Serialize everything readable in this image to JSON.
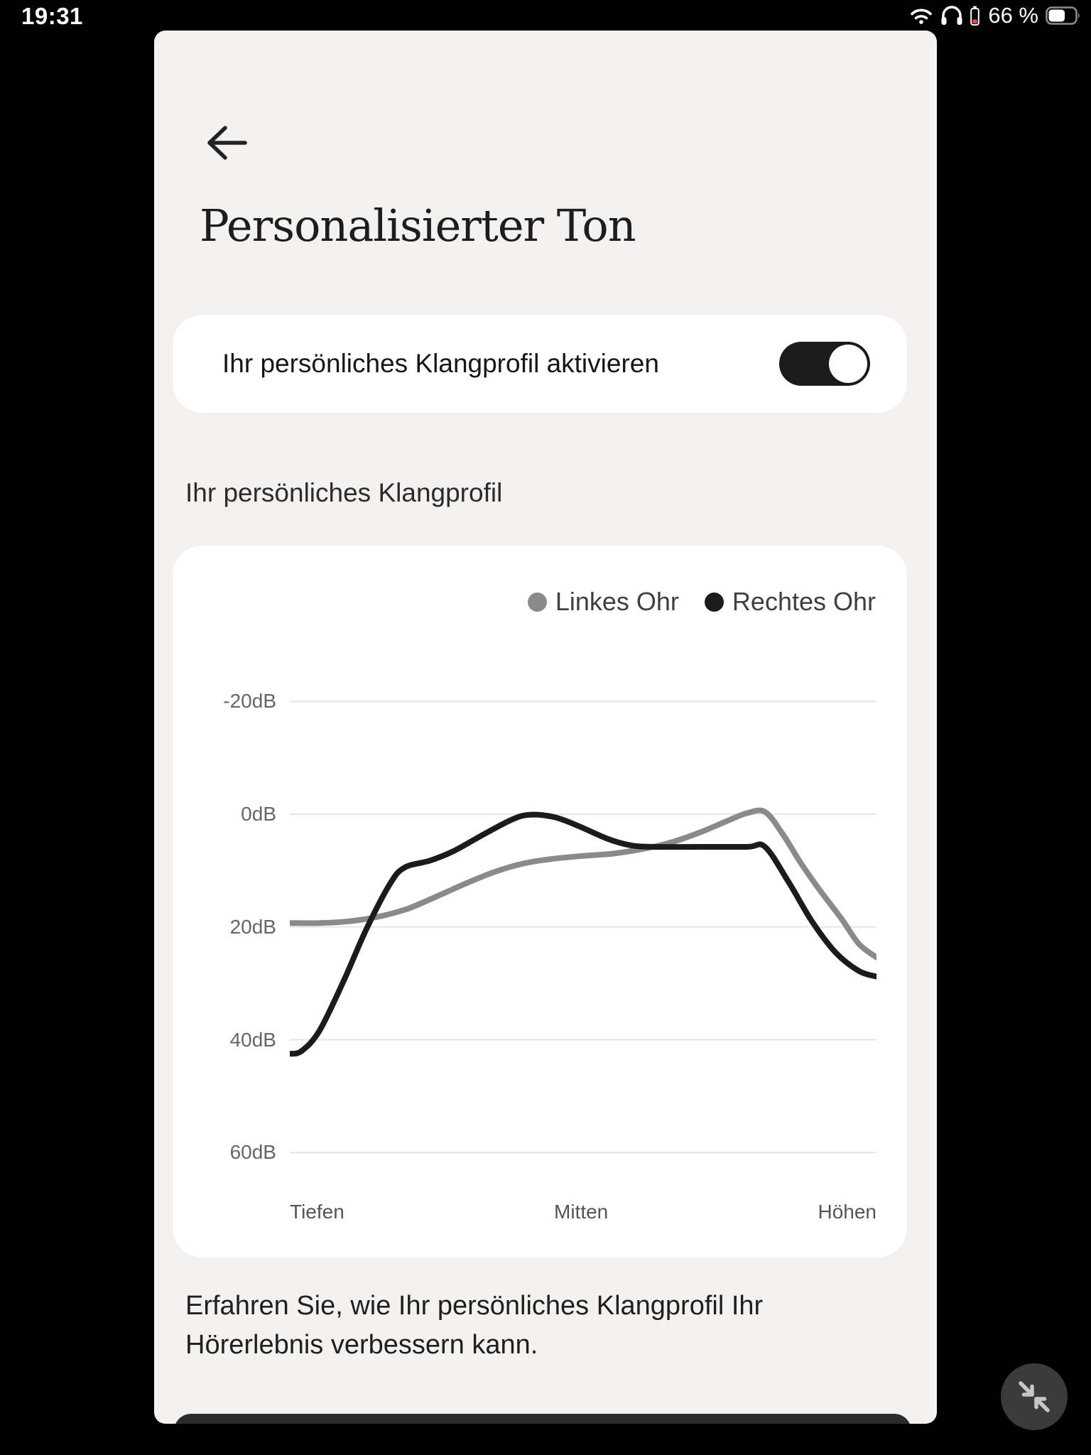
{
  "status_bar": {
    "time": "19:31",
    "battery_percent": "66 %",
    "wifi_icon": "wifi-icon",
    "headphones_icon": "headphones-icon",
    "headphone_battery_icon": "headphone-battery-low-icon",
    "battery_icon": "battery-icon",
    "battery_fill_ratio": 0.62
  },
  "header": {
    "back_icon": "back-arrow-icon",
    "title": "Personalisierter Ton"
  },
  "toggle_card": {
    "label": "Ihr persönliches Klangprofil aktivieren",
    "state": "on"
  },
  "section_label": "Ihr persönliches Klangprofil",
  "chart_data": {
    "type": "line",
    "legend_position": "top-right",
    "grid": true,
    "y_axis": {
      "inverted": true,
      "unit": "dB",
      "tick_values": [
        -20,
        0,
        20,
        40,
        60
      ],
      "tick_labels": [
        "-20dB",
        "0dB",
        "20dB",
        "40dB",
        "60dB"
      ]
    },
    "x_axis": {
      "labels": [
        "Tiefen",
        "Mitten",
        "Höhen"
      ]
    },
    "series": [
      {
        "name": "Linkes Ohr",
        "color": "#8a8a8a",
        "points": [
          [
            0.0,
            19.3
          ],
          [
            0.05,
            19.3
          ],
          [
            0.1,
            19.0
          ],
          [
            0.15,
            18.2
          ],
          [
            0.2,
            16.8
          ],
          [
            0.25,
            14.6
          ],
          [
            0.3,
            12.3
          ],
          [
            0.35,
            10.2
          ],
          [
            0.4,
            8.7
          ],
          [
            0.45,
            7.9
          ],
          [
            0.5,
            7.4
          ],
          [
            0.55,
            7.0
          ],
          [
            0.6,
            6.2
          ],
          [
            0.65,
            5.0
          ],
          [
            0.7,
            3.2
          ],
          [
            0.75,
            1.0
          ],
          [
            0.78,
            -0.2
          ],
          [
            0.81,
            -0.4
          ],
          [
            0.84,
            3.5
          ],
          [
            0.87,
            8.5
          ],
          [
            0.9,
            13.0
          ],
          [
            0.94,
            18.5
          ],
          [
            0.97,
            23.0
          ],
          [
            1.0,
            25.4
          ]
        ]
      },
      {
        "name": "Rechtes Ohr",
        "color": "#1b1b1b",
        "points": [
          [
            0.0,
            42.5
          ],
          [
            0.02,
            42.0
          ],
          [
            0.05,
            38.5
          ],
          [
            0.09,
            30.0
          ],
          [
            0.13,
            20.5
          ],
          [
            0.17,
            12.5
          ],
          [
            0.195,
            9.5
          ],
          [
            0.24,
            8.2
          ],
          [
            0.28,
            6.5
          ],
          [
            0.33,
            3.6
          ],
          [
            0.38,
            0.9
          ],
          [
            0.41,
            0.1
          ],
          [
            0.45,
            0.5
          ],
          [
            0.49,
            2.0
          ],
          [
            0.54,
            4.3
          ],
          [
            0.58,
            5.5
          ],
          [
            0.62,
            5.8
          ],
          [
            0.7,
            5.8
          ],
          [
            0.78,
            5.8
          ],
          [
            0.81,
            5.8
          ],
          [
            0.85,
            12.0
          ],
          [
            0.89,
            19.0
          ],
          [
            0.93,
            24.5
          ],
          [
            0.97,
            27.8
          ],
          [
            1.0,
            28.8
          ]
        ]
      }
    ]
  },
  "footer": {
    "text": "Erfahren Sie, wie Ihr persönliches Klangprofil Ihr Hörerlebnis verbessern kann."
  },
  "floating_button": {
    "icon": "collapse-arrows-icon"
  },
  "colors": {
    "page_background": "#000000",
    "window_background": "#f3f2f0",
    "card_background": "#ffffff",
    "accent_dark": "#1b1b1b",
    "gridline": "#e8e6e3",
    "headphone_battery_low": "#ff453a"
  }
}
